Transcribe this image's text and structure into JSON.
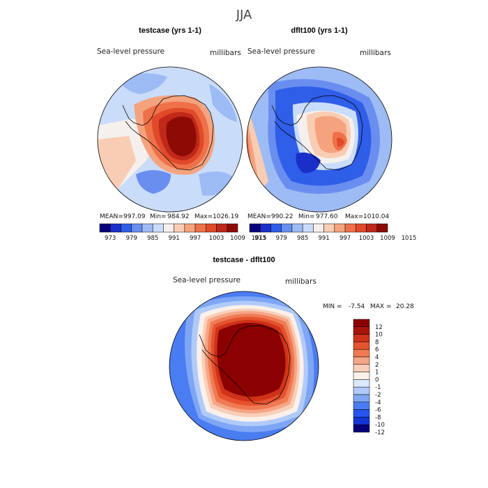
{
  "page": {
    "season": "JJA"
  },
  "colors": {
    "ramp_fields": [
      "#08007a",
      "#1a2fc8",
      "#2f5ee8",
      "#6a8ef0",
      "#9dbbf5",
      "#c9dcfa",
      "#f5f0ee",
      "#f9cdb4",
      "#f5a37f",
      "#ef7149",
      "#e04a2a",
      "#c0281a",
      "#8e0b05"
    ],
    "ramp_diff": [
      "#07007a",
      "#1236d8",
      "#2655ef",
      "#4a7cf2",
      "#7ea6f5",
      "#b0cbfa",
      "#dce9fd",
      "#fbf1ea",
      "#f9cfb9",
      "#f5a585",
      "#ef7a53",
      "#e5522e",
      "#cf3218",
      "#a8140a",
      "#8b0000"
    ],
    "coast": "#000000"
  },
  "panels": [
    {
      "title": "testcase (yrs 1-1)",
      "variable": "Sea-level pressure",
      "units": "millibars",
      "stats": {
        "mean_label": "MEAN=",
        "mean": "997.09",
        "min_label": "Min=",
        "min": "984.92",
        "max_label": "Max=",
        "max": "1026.19"
      }
    },
    {
      "title": "dflt100 (yrs 1-1)",
      "variable": "Sea-level pressure",
      "units": "millibars",
      "stats": {
        "mean_label": "MEAN=",
        "mean": "990.22",
        "min_label": "Min=",
        "min": "977.60",
        "max_label": "Max=",
        "max": "1010.04"
      }
    },
    {
      "title": "testcase - dflt100",
      "variable": "Sea-level pressure",
      "units": "millibars",
      "stats": {
        "min_label": "MIN =",
        "min": "-7.54",
        "max_label": "MAX =",
        "max": "20.28"
      }
    }
  ],
  "chart_data": [
    {
      "type": "heatmap",
      "title": "testcase (yrs 1-1)",
      "subtitle": "Sea-level pressure",
      "units": "millibars",
      "projection": "south polar stereographic",
      "mean": 997.09,
      "min": 984.92,
      "max": 1026.19,
      "colorbar": {
        "orientation": "horizontal",
        "tick_labels": [
          "973",
          "979",
          "985",
          "991",
          "997",
          "1003",
          "1009",
          "1015"
        ],
        "n_colors": 13
      }
    },
    {
      "type": "heatmap",
      "title": "dflt100 (yrs 1-1)",
      "subtitle": "Sea-level pressure",
      "units": "millibars",
      "projection": "south polar stereographic",
      "mean": 990.22,
      "min": 977.6,
      "max": 1010.04,
      "colorbar": {
        "orientation": "horizontal",
        "tick_labels": [
          "973",
          "979",
          "985",
          "991",
          "997",
          "1003",
          "1009",
          "1015"
        ],
        "n_colors": 13
      }
    },
    {
      "type": "heatmap",
      "title": "testcase - dflt100",
      "subtitle": "Sea-level pressure",
      "units": "millibars",
      "projection": "south polar stereographic",
      "min": -7.54,
      "max": 20.28,
      "colorbar": {
        "orientation": "vertical",
        "tick_labels": [
          "12",
          "10",
          "8",
          "6",
          "4",
          "2",
          "1",
          "0",
          "-1",
          "-2",
          "-4",
          "-6",
          "-8",
          "-10",
          "-12"
        ],
        "n_colors": 15
      }
    }
  ]
}
